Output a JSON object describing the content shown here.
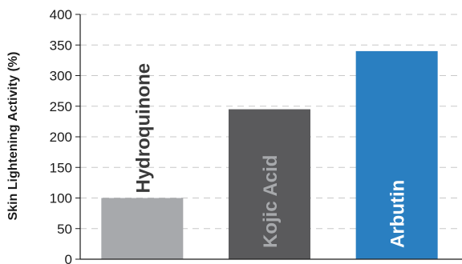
{
  "chart_data": {
    "type": "bar",
    "title": "",
    "xlabel": "",
    "ylabel": "Skin Lightening Activity (%)",
    "ylim": [
      0,
      400
    ],
    "yticks": [
      0,
      50,
      100,
      150,
      200,
      250,
      300,
      350,
      400
    ],
    "grid": "horizontal-dashed",
    "legend": "none",
    "categories": [
      "Hydroquinone",
      "Kojic Acid",
      "Arbutin"
    ],
    "values": [
      100,
      245,
      340
    ],
    "bar_colors": [
      "#a7a9ac",
      "#5a5a5c",
      "#2a7fc1"
    ],
    "label_colors": [
      "#3a3a3a",
      "#a7a9ac",
      "#ffffff"
    ]
  }
}
